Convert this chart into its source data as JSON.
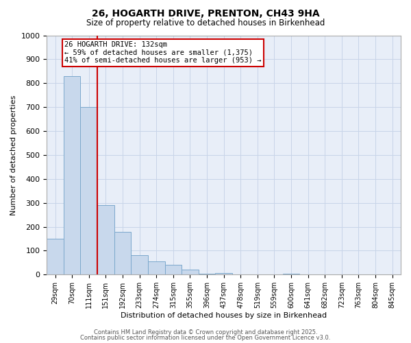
{
  "title_line1": "26, HOGARTH DRIVE, PRENTON, CH43 9HA",
  "title_line2": "Size of property relative to detached houses in Birkenhead",
  "xlabel": "Distribution of detached houses by size in Birkenhead",
  "ylabel": "Number of detached properties",
  "categories": [
    "29sqm",
    "70sqm",
    "111sqm",
    "151sqm",
    "192sqm",
    "233sqm",
    "274sqm",
    "315sqm",
    "355sqm",
    "396sqm",
    "437sqm",
    "478sqm",
    "519sqm",
    "559sqm",
    "600sqm",
    "641sqm",
    "682sqm",
    "723sqm",
    "763sqm",
    "804sqm",
    "845sqm"
  ],
  "values": [
    150,
    830,
    700,
    290,
    180,
    80,
    55,
    40,
    20,
    5,
    8,
    0,
    0,
    0,
    5,
    0,
    0,
    0,
    0,
    0,
    0
  ],
  "bar_color": "#c8d8ec",
  "bar_edge_color": "#7ba8cc",
  "bar_edge_width": 0.7,
  "red_line_x": 2.5,
  "red_line_color": "#cc0000",
  "annotation_text": "26 HOGARTH DRIVE: 132sqm\n← 59% of detached houses are smaller (1,375)\n41% of semi-detached houses are larger (953) →",
  "annotation_box_color": "#ffffff",
  "annotation_box_edge": "#cc0000",
  "ylim": [
    0,
    1000
  ],
  "yticks": [
    0,
    100,
    200,
    300,
    400,
    500,
    600,
    700,
    800,
    900,
    1000
  ],
  "grid_color": "#c8d4e8",
  "background_color": "#ffffff",
  "plot_bg_color": "#e8eef8",
  "footer_line1": "Contains HM Land Registry data © Crown copyright and database right 2025.",
  "footer_line2": "Contains public sector information licensed under the Open Government Licence v3.0."
}
